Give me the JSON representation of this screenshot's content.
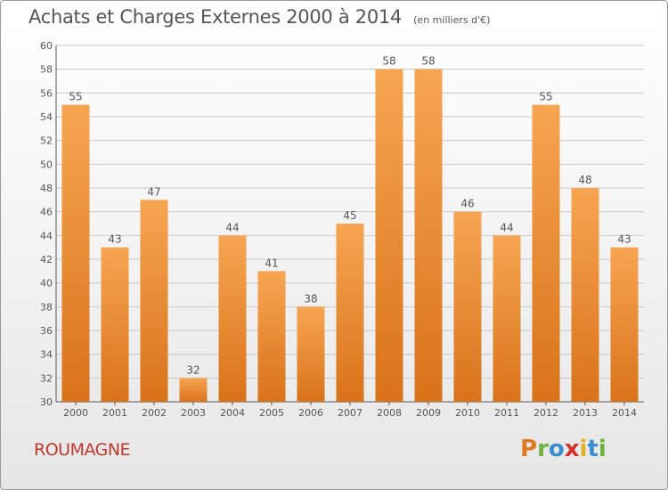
{
  "header": {
    "title": "Achats et Charges Externes 2000 à 2014",
    "unit": "(en milliers d'€)"
  },
  "footer": {
    "place": "ROUMAGNE",
    "logo_text": "Proxiti"
  },
  "colors": {
    "bar_light": "#f7a552",
    "bar_dark": "#d9731a",
    "axis": "#555555",
    "grid": "#c8c8c8",
    "place": "#c0392b"
  },
  "chart_data": {
    "type": "bar",
    "title": "Achats et Charges Externes 2000 à 2014",
    "subtitle": "(en milliers d'€)",
    "categories": [
      "2000",
      "2001",
      "2002",
      "2003",
      "2004",
      "2005",
      "2006",
      "2007",
      "2008",
      "2009",
      "2010",
      "2011",
      "2012",
      "2013",
      "2014"
    ],
    "values": [
      55,
      43,
      47,
      32,
      44,
      41,
      38,
      45,
      58,
      58,
      46,
      44,
      55,
      48,
      43
    ],
    "ylim": [
      30,
      60
    ],
    "yticks": [
      30,
      32,
      34,
      36,
      38,
      40,
      42,
      44,
      46,
      48,
      50,
      52,
      54,
      56,
      58,
      60
    ],
    "grid": true,
    "data_labels": true
  }
}
